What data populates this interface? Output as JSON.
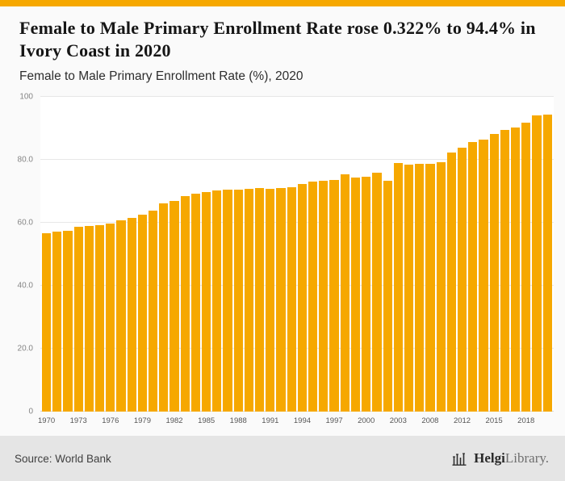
{
  "header": {
    "title": "Female to Male Primary Enrollment Rate rose 0.322% to 94.4% in Ivory Coast in 2020",
    "subtitle": "Female to Male Primary Enrollment Rate (%), 2020"
  },
  "chart_data": {
    "type": "bar",
    "title": "Female to Male Primary Enrollment Rate rose 0.322% to 94.4% in Ivory Coast in 2020",
    "subtitle": "Female to Male Primary Enrollment Rate (%), 2020",
    "bar_color": "#F6A800",
    "ylim": [
      0,
      100
    ],
    "grid": true,
    "legend": false,
    "yticks": [
      {
        "value": 0,
        "label": "0"
      },
      {
        "value": 20,
        "label": "20.0"
      },
      {
        "value": 40,
        "label": "40.0"
      },
      {
        "value": 60,
        "label": "60.0"
      },
      {
        "value": 80,
        "label": "80.0"
      },
      {
        "value": 100,
        "label": "100"
      }
    ],
    "x_tick_labels": [
      "1970",
      "1973",
      "1976",
      "1979",
      "1982",
      "1985",
      "1988",
      "1991",
      "1994",
      "1997",
      "2000",
      "2003",
      "2008",
      "2012",
      "2015",
      "2018"
    ],
    "categories": [
      1970,
      1971,
      1972,
      1973,
      1974,
      1975,
      1976,
      1977,
      1978,
      1979,
      1980,
      1981,
      1982,
      1983,
      1984,
      1985,
      1986,
      1987,
      1988,
      1989,
      1990,
      1991,
      1992,
      1993,
      1994,
      1995,
      1996,
      1997,
      1998,
      1999,
      2000,
      2001,
      2002,
      2003,
      2006,
      2007,
      2008,
      2009,
      2011,
      2012,
      2013,
      2014,
      2015,
      2016,
      2017,
      2018,
      2019,
      2020
    ],
    "values": [
      56.6,
      57.2,
      57.6,
      58.7,
      59.1,
      59.4,
      59.8,
      60.9,
      61.5,
      62.5,
      63.9,
      66.1,
      67.1,
      68.4,
      69.2,
      69.9,
      70.4,
      70.6,
      70.7,
      70.8,
      71.1,
      70.8,
      71.0,
      71.3,
      72.4,
      73.2,
      73.5,
      73.7,
      75.4,
      74.3,
      74.8,
      75.9,
      73.4,
      79.1,
      78.6,
      78.7,
      78.7,
      79.2,
      82.4,
      83.8,
      85.6,
      86.6,
      88.2,
      89.5,
      90.4,
      91.9,
      94.1,
      94.4
    ]
  },
  "footer": {
    "source": "Source: World Bank",
    "logo_bold": "Helgi",
    "logo_light": "Library."
  }
}
